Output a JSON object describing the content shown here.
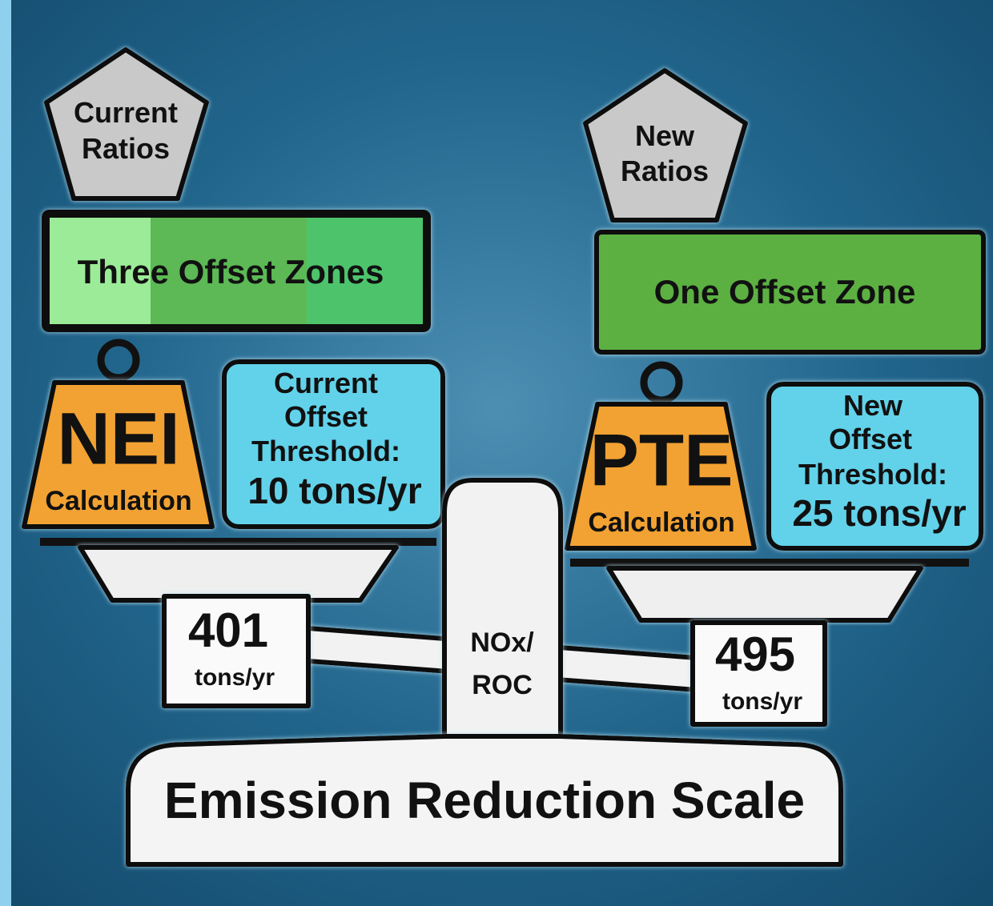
{
  "left": {
    "ratios": [
      "Current",
      "Ratios"
    ],
    "zones": "Three Offset Zones",
    "weight": {
      "label": "NEI",
      "sub": "Calculation"
    },
    "threshold": [
      "Current",
      "Offset",
      "Threshold:",
      "10 tons/yr"
    ],
    "emissions": {
      "value": 401,
      "unit": "tons/yr"
    }
  },
  "right": {
    "ratios": [
      "New",
      "Ratios"
    ],
    "zones": "One Offset Zone",
    "weight": {
      "label": "PTE",
      "sub": "Calculation"
    },
    "threshold": [
      "New",
      "Offset",
      "Threshold:",
      "25 tons/yr"
    ],
    "emissions": {
      "value": 495,
      "unit": "tons/yr"
    }
  },
  "center": {
    "pollutant": [
      "NOx/",
      "ROC"
    ],
    "base": "Emission Reduction Scale"
  }
}
